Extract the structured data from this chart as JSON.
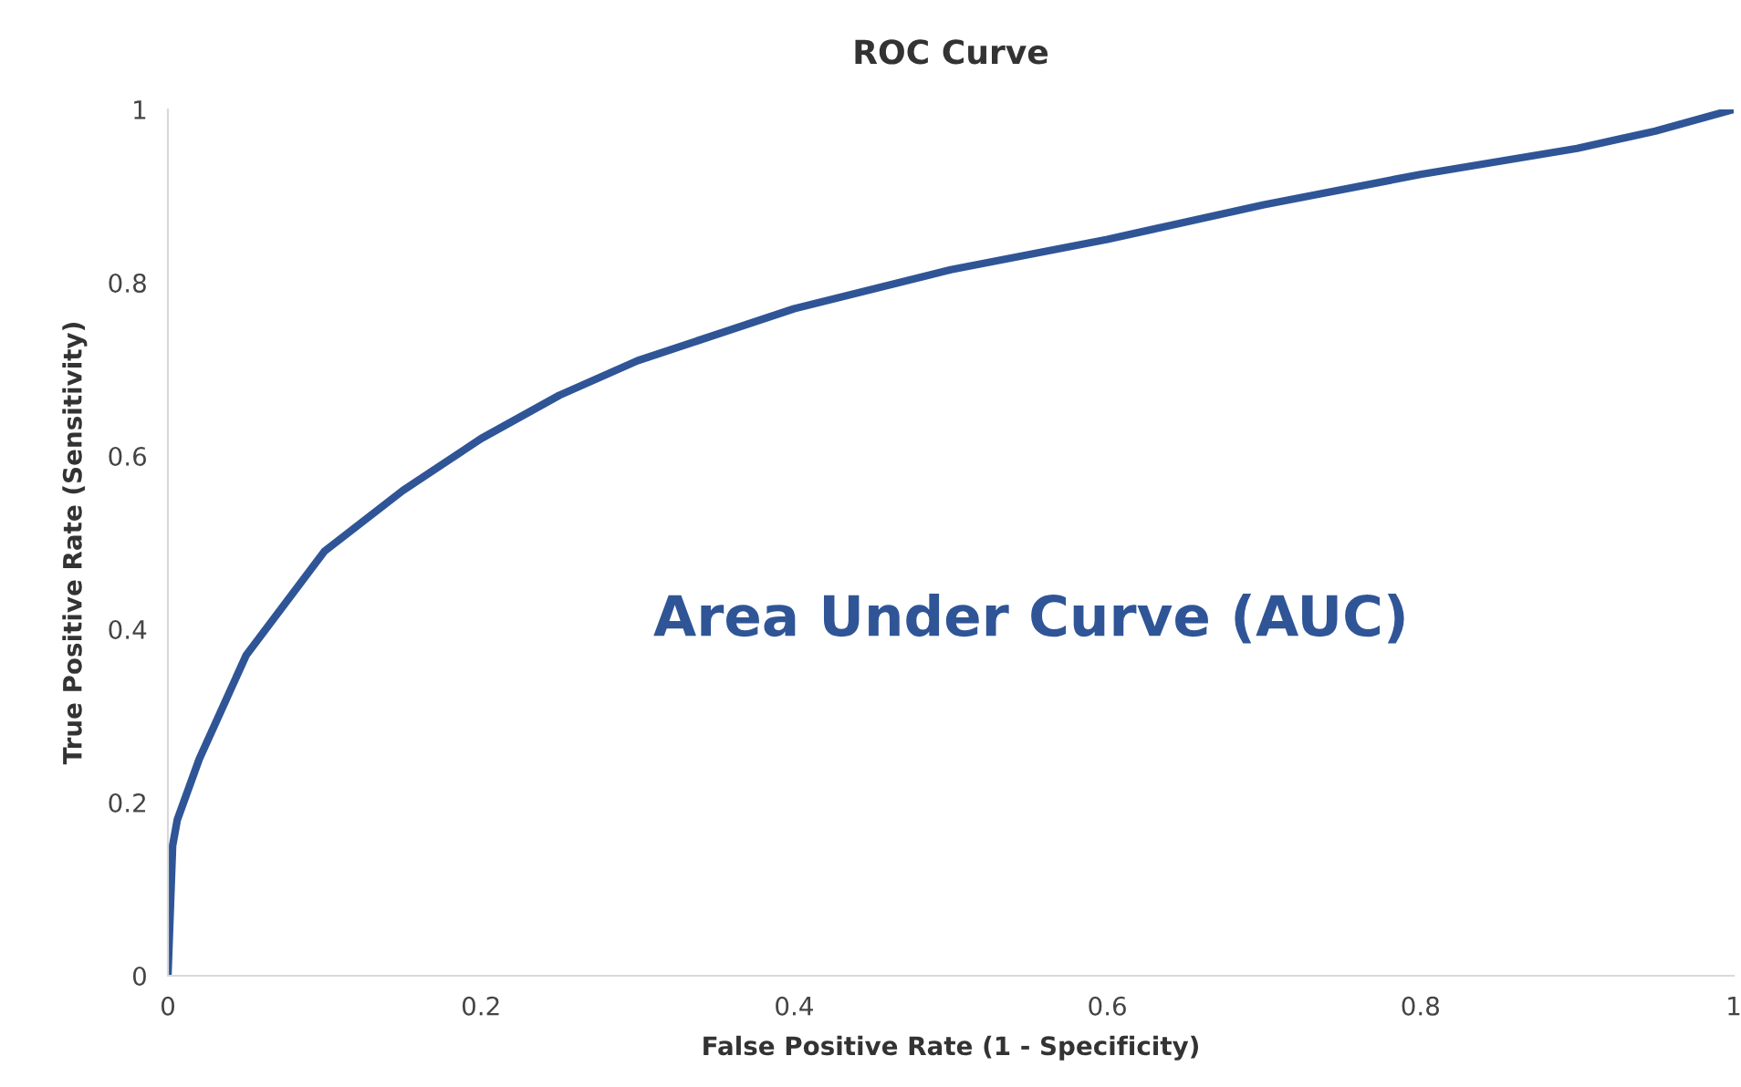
{
  "chart_data": {
    "type": "line",
    "title": "ROC Curve",
    "xlabel": "False Positive Rate (1 - Specificity)",
    "ylabel": "True Positive Rate (Sensitivity)",
    "x": [
      0,
      0.003,
      0.006,
      0.01,
      0.02,
      0.035,
      0.05,
      0.075,
      0.1,
      0.15,
      0.2,
      0.25,
      0.3,
      0.35,
      0.4,
      0.5,
      0.6,
      0.7,
      0.8,
      0.9,
      0.95,
      1.0
    ],
    "series": [
      {
        "color": "#2f5597",
        "values": [
          0,
          0.15,
          0.18,
          0.2,
          0.25,
          0.31,
          0.37,
          0.43,
          0.49,
          0.56,
          0.62,
          0.67,
          0.71,
          0.74,
          0.77,
          0.815,
          0.85,
          0.89,
          0.925,
          0.955,
          0.975,
          1.0
        ]
      }
    ],
    "xlim": [
      0,
      1
    ],
    "ylim": [
      0,
      1
    ],
    "xticks": [
      0,
      0.2,
      0.4,
      0.6,
      0.8,
      1
    ],
    "yticks": [
      0,
      0.2,
      0.4,
      0.6,
      0.8,
      1
    ],
    "annotations": [
      "Area Under Curve (AUC)"
    ],
    "grid": false,
    "legend": false,
    "marker": "none",
    "line_style": "solid"
  }
}
